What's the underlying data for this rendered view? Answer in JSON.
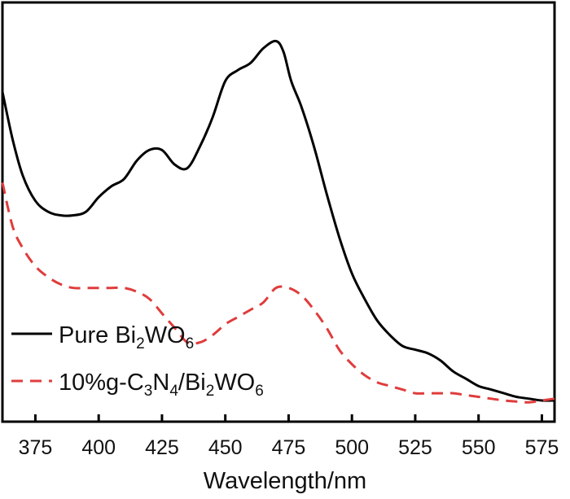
{
  "chart_data": {
    "type": "line",
    "title": "",
    "xlabel": "Wavelength/nm",
    "ylabel": "",
    "xlim": [
      362,
      580
    ],
    "ylim": [
      0,
      100
    ],
    "xticks": [
      "375",
      "400",
      "425",
      "450",
      "475",
      "500",
      "525",
      "550",
      "575"
    ],
    "yticks_shown": false,
    "legend_position": "bottom-left",
    "series": [
      {
        "name": "Pure Bi2WO6",
        "legend_parts": [
          "Pure Bi",
          "2",
          "WO",
          "6"
        ],
        "color": "#000000",
        "style": "solid",
        "x": [
          362,
          366,
          370,
          375,
          380,
          385,
          390,
          395,
          400,
          405,
          410,
          415,
          420,
          425,
          430,
          435,
          440,
          445,
          450,
          455,
          460,
          465,
          470,
          473,
          476,
          480,
          485,
          490,
          495,
          500,
          505,
          510,
          515,
          520,
          525,
          530,
          535,
          540,
          545,
          550,
          555,
          560,
          565,
          570,
          575,
          580
        ],
        "values": [
          85,
          72,
          62,
          55,
          52,
          51,
          51,
          52,
          56,
          59,
          61,
          66,
          69,
          69,
          65,
          64,
          70,
          78,
          88,
          91,
          93,
          97,
          99,
          96,
          88,
          81,
          70,
          57,
          45,
          35,
          28,
          22,
          18,
          15,
          14,
          13,
          11,
          8,
          6,
          4,
          3,
          2,
          1,
          0.5,
          0,
          0
        ]
      },
      {
        "name": "10%g-C3N4/Bi2WO6",
        "legend_parts": [
          "10%g-C",
          "3",
          "N",
          "4",
          "/Bi",
          "2",
          "WO",
          "6"
        ],
        "color": "#e03c3c",
        "style": "dashed",
        "x": [
          362,
          366,
          370,
          375,
          380,
          385,
          390,
          395,
          400,
          405,
          410,
          415,
          420,
          425,
          430,
          435,
          440,
          445,
          450,
          455,
          460,
          465,
          470,
          475,
          480,
          485,
          490,
          495,
          500,
          505,
          510,
          515,
          520,
          525,
          530,
          535,
          540,
          545,
          550,
          555,
          560,
          565,
          570,
          575,
          580
        ],
        "values": [
          60,
          48,
          42,
          37,
          34,
          32,
          31,
          31,
          31,
          31,
          31,
          30,
          28,
          24,
          20,
          16,
          16,
          18,
          21,
          23,
          25,
          27,
          31,
          31,
          29,
          25,
          20,
          14,
          10,
          7,
          5,
          4,
          3,
          2,
          2,
          2,
          2,
          1.5,
          1,
          0.5,
          0,
          -0.3,
          -0.5,
          0,
          0.5
        ]
      }
    ]
  }
}
